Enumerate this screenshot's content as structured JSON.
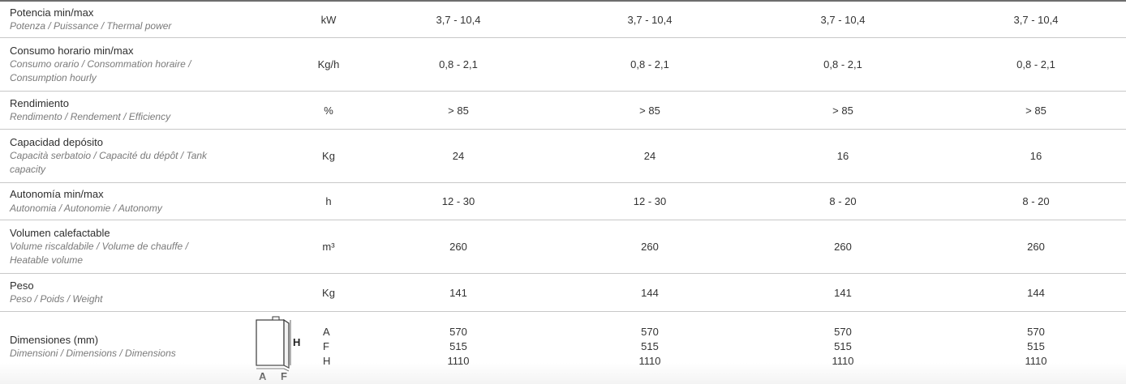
{
  "rows": [
    {
      "label": "Potencia min/max",
      "sub": "Potenza / Puissance / Thermal power",
      "unit": "kW",
      "values": [
        "3,7 - 10,4",
        "3,7 - 10,4",
        "3,7 - 10,4",
        "3,7 - 10,4"
      ]
    },
    {
      "label": "Consumo horario min/max",
      "sub": "Consumo orario / Consommation horaire /",
      "sub2": "Consumption hourly",
      "unit": "Kg/h",
      "values": [
        "0,8 - 2,1",
        "0,8 - 2,1",
        "0,8 - 2,1",
        "0,8 - 2,1"
      ]
    },
    {
      "label": "Rendimiento",
      "sub": "Rendimento / Rendement / Efficiency",
      "unit": "%",
      "values": [
        "> 85",
        "> 85",
        "> 85",
        "> 85"
      ]
    },
    {
      "label": "Capacidad depósito",
      "sub": "Capacità serbatoio / Capacité du dépôt  / Tank",
      "sub2": "capacity",
      "unit": "Kg",
      "values": [
        "24",
        "24",
        "16",
        "16"
      ]
    },
    {
      "label": "Autonomía min/max",
      "sub": "Autonomia / Autonomie / Autonomy",
      "unit": "h",
      "values": [
        "12 - 30",
        "12 - 30",
        "8 - 20",
        "8 - 20"
      ]
    },
    {
      "label": "Volumen calefactable",
      "sub": "Volume riscaldabile / Volume de chauffe /",
      "sub2": "Heatable volume",
      "unit": "m³",
      "values": [
        "260",
        "260",
        "260",
        "260"
      ]
    },
    {
      "label": "Peso",
      "sub": "Peso / Poids / Weight",
      "unit": "Kg",
      "values": [
        "141",
        "144",
        "141",
        "144"
      ]
    }
  ],
  "dimensions": {
    "label": "Dimensiones (mm)",
    "sub": "Dimensioni / Dimensions / Dimensions",
    "units": [
      "A",
      "F",
      "H"
    ],
    "columns": [
      [
        "570",
        "515",
        "1110"
      ],
      [
        "570",
        "515",
        "1110"
      ],
      [
        "570",
        "515",
        "1110"
      ],
      [
        "570",
        "515",
        "1110"
      ]
    ],
    "diagram_labels": {
      "h": "H",
      "a": "A",
      "f": "F"
    }
  }
}
